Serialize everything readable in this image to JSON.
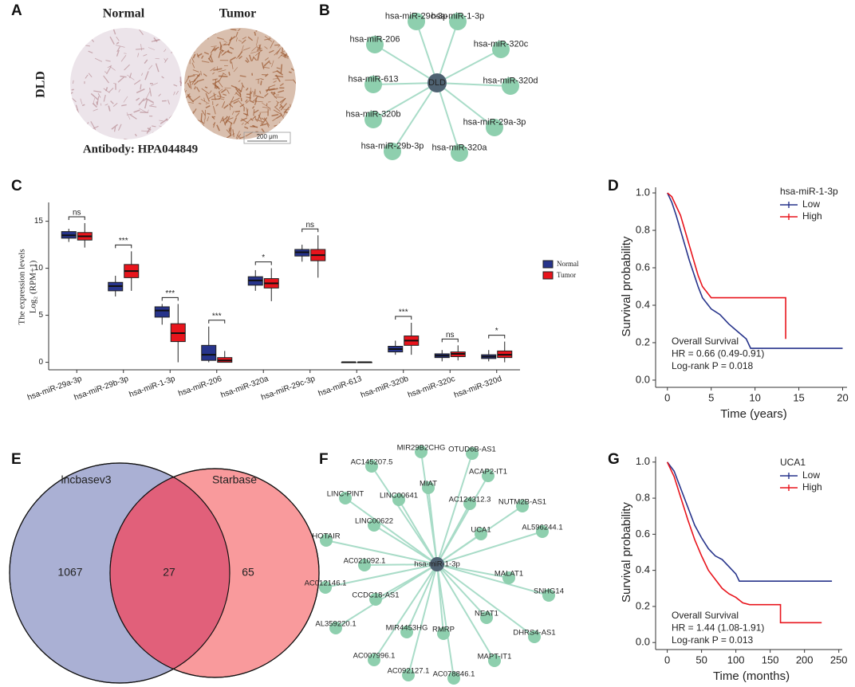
{
  "figure": {
    "panel_labels": [
      "A",
      "B",
      "C",
      "D",
      "E",
      "F",
      "G"
    ]
  },
  "ihc": {
    "row_label": "DLD",
    "columns": [
      "Normal",
      "Tumor"
    ],
    "antibody": "Antibody: HPA044849",
    "scale_bar": "200 μm"
  },
  "network_b": {
    "center": "DLD",
    "nodes": [
      "hsa-miR-29c-3p",
      "hsa-miR-1-3p",
      "hsa-miR-206",
      "hsa-miR-320c",
      "hsa-miR-613",
      "hsa-miR-320d",
      "hsa-miR-320b",
      "hsa-miR-29a-3p",
      "hsa-miR-29b-3p",
      "hsa-miR-320a"
    ]
  },
  "venn": {
    "sets": [
      "lncbasev3",
      "Starbase"
    ],
    "left_only": "1067",
    "both": "27",
    "right_only": "65"
  },
  "network_f": {
    "center": "hsa-miR-1-3p",
    "nodes": [
      "MIR29B2CHG",
      "OTUD6B-AS1",
      "AC145207.5",
      "MIAT",
      "ACAP2-IT1",
      "LINC-PINT",
      "LINC00641",
      "AC124312.3",
      "NUTM2B-AS1",
      "HOTAIR",
      "LINC00622",
      "UCA1",
      "AL596244.1",
      "AC021092.1",
      "MALAT1",
      "AC012146.1",
      "SNHG14",
      "CCDC18-AS1",
      "NEAT1",
      "AL359220.1",
      "MIR4453HG",
      "RMRP",
      "DHRS4-AS1",
      "AC007996.1",
      "MAPT-IT1",
      "AC092127.1",
      "AC078846.1"
    ]
  },
  "chart_data": [
    {
      "type": "box",
      "y_label": [
        "The expression  levels",
        "Log₂ (RPM+1)"
      ],
      "categories": [
        "hsa-miR-29a-3p",
        "hsa-miR-29b-3p",
        "hsa-miR-1-3p",
        "hsa-miR-206",
        "hsa-miR-320a",
        "hsa-miR-29c-3p",
        "hsa-miR-613",
        "hsa-miR-320b",
        "hsa-miR-320c",
        "hsa-miR-320d"
      ],
      "series": [
        {
          "name": "Normal",
          "color": "#27348b",
          "values": [
            [
              12.8,
              13.2,
              13.5,
              13.9,
              14.2
            ],
            [
              7.0,
              7.6,
              8.1,
              8.5,
              9.2
            ],
            [
              4.0,
              4.8,
              5.5,
              5.9,
              6.2
            ],
            [
              0,
              0.2,
              0.8,
              1.8,
              3.8
            ],
            [
              7.6,
              8.2,
              8.7,
              9.1,
              9.8
            ],
            [
              10.7,
              11.3,
              11.7,
              12.0,
              12.5
            ],
            [
              0,
              0,
              0,
              0,
              0
            ],
            [
              0.8,
              1.1,
              1.4,
              1.7,
              2.3
            ],
            [
              0.1,
              0.5,
              0.7,
              0.9,
              1.3
            ],
            [
              0.1,
              0.4,
              0.6,
              0.8,
              1.3
            ]
          ]
        },
        {
          "name": "Tumor",
          "color": "#e8141c",
          "values": [
            [
              12.2,
              13.0,
              13.4,
              13.8,
              14.8
            ],
            [
              7.6,
              9.0,
              9.7,
              10.4,
              11.8
            ],
            [
              0,
              2.2,
              3.1,
              4.1,
              6.2
            ],
            [
              0,
              0,
              0.2,
              0.5,
              1.2
            ],
            [
              6.5,
              7.9,
              8.4,
              8.9,
              10.0
            ],
            [
              9.0,
              10.8,
              11.4,
              12.0,
              13.5
            ],
            [
              0,
              0,
              0,
              0,
              0
            ],
            [
              0.8,
              1.8,
              2.3,
              2.8,
              4.2
            ],
            [
              0.2,
              0.6,
              0.9,
              1.1,
              1.8
            ],
            [
              0,
              0.5,
              0.8,
              1.2,
              2.2
            ]
          ]
        }
      ],
      "annotations": [
        "ns",
        "***",
        "***",
        "***",
        "*",
        "ns",
        null,
        "***",
        "ns",
        "*"
      ],
      "ylim": [
        -0.8,
        17
      ],
      "yticks": [
        0,
        5,
        10,
        15
      ]
    },
    {
      "type": "line",
      "legend_title": "hsa-miR-1-3p",
      "x_label": "Time (years)",
      "y_label": "Survival probability",
      "annotations": [
        "Overall Survival",
        "HR = 0.66 (0.49-0.91)",
        "Log-rank P = 0.018"
      ],
      "series": [
        {
          "name": "Low",
          "color": "#27348b",
          "x": [
            0,
            0.5,
            1,
            1.5,
            2,
            2.5,
            3,
            3.5,
            4,
            5,
            6,
            7,
            8,
            9,
            9.5,
            20
          ],
          "values": [
            1,
            0.95,
            0.88,
            0.8,
            0.72,
            0.64,
            0.57,
            0.5,
            0.44,
            0.38,
            0.35,
            0.3,
            0.26,
            0.22,
            0.17,
            0.17
          ]
        },
        {
          "name": "High",
          "color": "#e8141c",
          "x": [
            0,
            0.5,
            1,
            1.5,
            2,
            2.5,
            3,
            3.5,
            4,
            4.5,
            5,
            13.5,
            13.5
          ],
          "values": [
            1,
            0.98,
            0.93,
            0.88,
            0.8,
            0.72,
            0.64,
            0.56,
            0.5,
            0.47,
            0.44,
            0.44,
            0.22
          ]
        }
      ],
      "xlim": [
        -0.8,
        20.5
      ],
      "xticks": [
        0,
        5,
        10,
        15,
        20
      ],
      "ylim": [
        -0.03,
        1.03
      ],
      "yticks": [
        {
          "value": 0,
          "label": "0.0"
        },
        0.2,
        0.4,
        0.6,
        0.8,
        {
          "value": 1,
          "label": "1.0"
        }
      ]
    },
    {
      "type": "line",
      "legend_title": "UCA1",
      "x_label": "Time (months)",
      "y_label": "Survival probability",
      "annotations": [
        "Overall Survival",
        "HR = 1.44 (1.08-1.91)",
        "Log-rank P = 0.013"
      ],
      "series": [
        {
          "name": "Low",
          "color": "#27348b",
          "x": [
            0,
            10,
            20,
            30,
            40,
            50,
            60,
            70,
            80,
            90,
            100,
            105,
            240
          ],
          "values": [
            1,
            0.95,
            0.85,
            0.75,
            0.65,
            0.58,
            0.52,
            0.48,
            0.46,
            0.42,
            0.38,
            0.34,
            0.34
          ]
        },
        {
          "name": "High",
          "color": "#e8141c",
          "x": [
            0,
            10,
            20,
            30,
            40,
            50,
            60,
            70,
            80,
            90,
            100,
            110,
            120,
            165,
            165,
            225
          ],
          "values": [
            1,
            0.92,
            0.8,
            0.68,
            0.57,
            0.48,
            0.4,
            0.35,
            0.3,
            0.27,
            0.25,
            0.22,
            0.21,
            0.21,
            0.11,
            0.11
          ]
        }
      ],
      "xlim": [
        -10,
        255
      ],
      "xticks": [
        0,
        50,
        100,
        150,
        200,
        250
      ],
      "ylim": [
        -0.03,
        1.03
      ],
      "yticks": [
        {
          "value": 0,
          "label": "0.0"
        },
        0.2,
        0.4,
        0.6,
        0.8,
        {
          "value": 1,
          "label": "1.0"
        }
      ]
    }
  ]
}
